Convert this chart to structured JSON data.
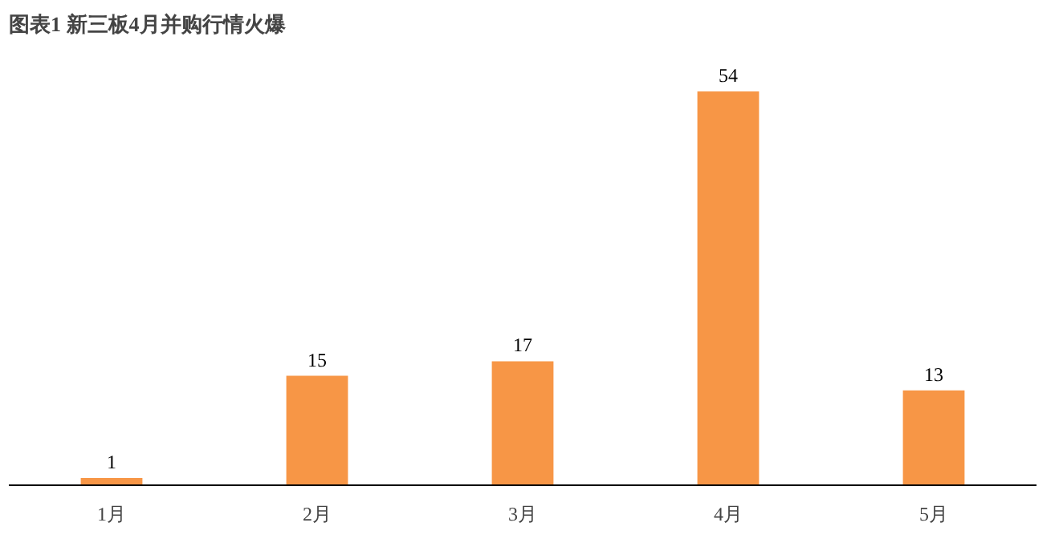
{
  "chart_data": {
    "type": "bar",
    "title": "图表1  新三板4月并购行情火爆",
    "categories": [
      "1月",
      "2月",
      "3月",
      "4月",
      "5月"
    ],
    "values": [
      1,
      15,
      17,
      54,
      13
    ],
    "color": "#f79646",
    "data_labels": true
  }
}
